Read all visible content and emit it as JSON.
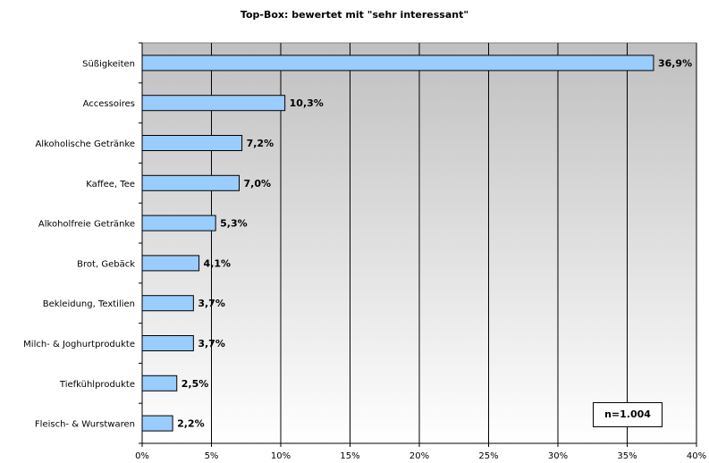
{
  "chart_data": {
    "type": "bar",
    "orientation": "horizontal",
    "title": "Top-Box: bewertet mit \"sehr interessant\"",
    "categories": [
      "Süßigkeiten",
      "Accessoires",
      "Alkoholische Getränke",
      "Kaffee, Tee",
      "Alkoholfreie Getränke",
      "Brot, Gebäck",
      "Bekleidung, Textilien",
      "Milch- & Joghurtprodukte",
      "Tiefkühlprodukte",
      "Fleisch- & Wurstwaren"
    ],
    "values": [
      36.9,
      10.3,
      7.2,
      7.0,
      5.3,
      4.1,
      3.7,
      3.7,
      2.5,
      2.2
    ],
    "value_labels": [
      "36,9%",
      "10,3%",
      "7,2%",
      "7,0%",
      "5,3%",
      "4,1%",
      "3,7%",
      "3,7%",
      "2,5%",
      "2,2%"
    ],
    "xlim": [
      0,
      40
    ],
    "x_ticks": [
      0,
      5,
      10,
      15,
      20,
      25,
      30,
      35,
      40
    ],
    "x_tick_labels": [
      "0%",
      "5%",
      "10%",
      "15%",
      "20%",
      "25%",
      "30%",
      "35%",
      "40%"
    ],
    "grid": true,
    "annotation": "n=1.004",
    "colors": {
      "bar": "#99ccff",
      "bar_stroke": "#000000",
      "plot_bg_top": "#c0c0c0",
      "plot_bg_bottom": "#ffffff",
      "grid": "#000000"
    }
  }
}
